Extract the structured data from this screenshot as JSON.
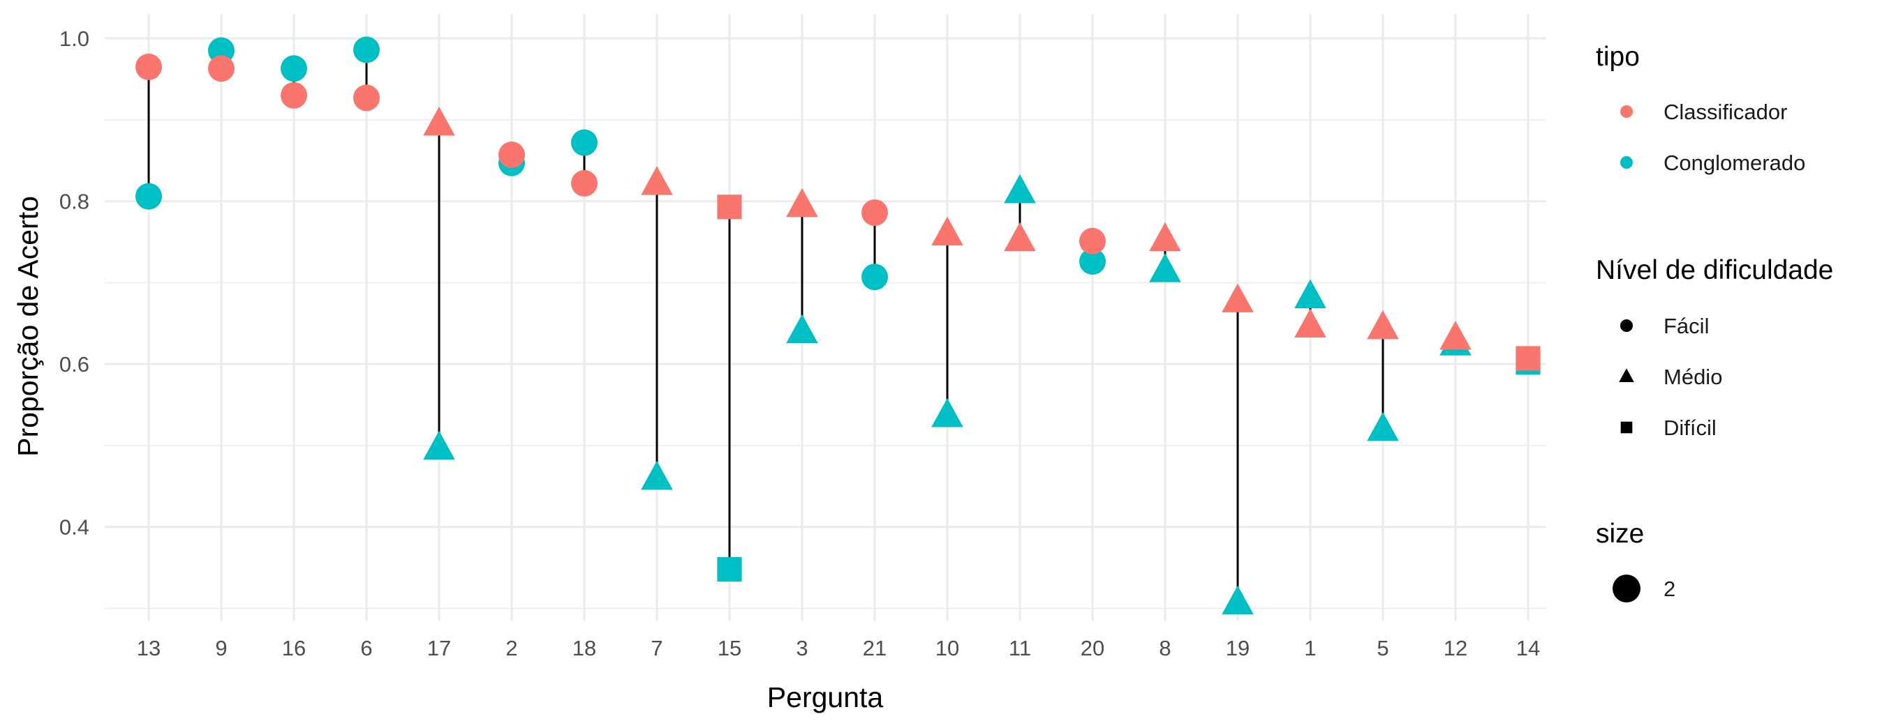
{
  "chart_data": {
    "type": "scatter",
    "xlabel": "Pergunta",
    "ylabel": "Proporção de Acerto",
    "categories": [
      "13",
      "9",
      "16",
      "6",
      "17",
      "2",
      "18",
      "7",
      "15",
      "3",
      "21",
      "10",
      "11",
      "20",
      "8",
      "19",
      "1",
      "5",
      "12",
      "14"
    ],
    "ylim": [
      0.285,
      1.03
    ],
    "yticks": [
      0.4,
      0.6,
      0.8,
      1.0
    ],
    "ytick_labels": [
      "0.4",
      "0.6",
      "0.8",
      "1.0"
    ],
    "grid": true,
    "difficulty": [
      "Fácil",
      "Fácil",
      "Fácil",
      "Fácil",
      "Médio",
      "Fácil",
      "Fácil",
      "Médio",
      "Difícil",
      "Médio",
      "Fácil",
      "Médio",
      "Médio",
      "Fácil",
      "Médio",
      "Médio",
      "Médio",
      "Médio",
      "Médio",
      "Difícil"
    ],
    "series": [
      {
        "name": "Classificador",
        "color": "#F8766D",
        "values": [
          0.965,
          0.963,
          0.93,
          0.927,
          0.895,
          0.857,
          0.822,
          0.822,
          0.793,
          0.795,
          0.786,
          0.76,
          0.753,
          0.751,
          0.753,
          0.678,
          0.647,
          0.645,
          0.632,
          0.607
        ]
      },
      {
        "name": "Conglomerado",
        "color": "#00BFC4",
        "values": [
          0.806,
          0.985,
          0.963,
          0.986,
          0.497,
          0.847,
          0.872,
          0.46,
          0.348,
          0.64,
          0.707,
          0.537,
          0.812,
          0.726,
          0.715,
          0.307,
          0.683,
          0.52,
          0.625,
          0.602
        ]
      }
    ],
    "legend": {
      "position": "right",
      "color_title": "tipo",
      "color_items": [
        "Classificador",
        "Conglomerado"
      ],
      "shape_title": "Nível de dificuldade",
      "shape_items": [
        {
          "label": "Fácil",
          "shape": "circle"
        },
        {
          "label": "Médio",
          "shape": "triangle"
        },
        {
          "label": "Difícil",
          "shape": "square"
        }
      ],
      "size_title": "size",
      "size_items": [
        "2"
      ]
    },
    "segment_color": "#000000",
    "grid_color": "#EBEBEB",
    "key_color": "#000000"
  }
}
